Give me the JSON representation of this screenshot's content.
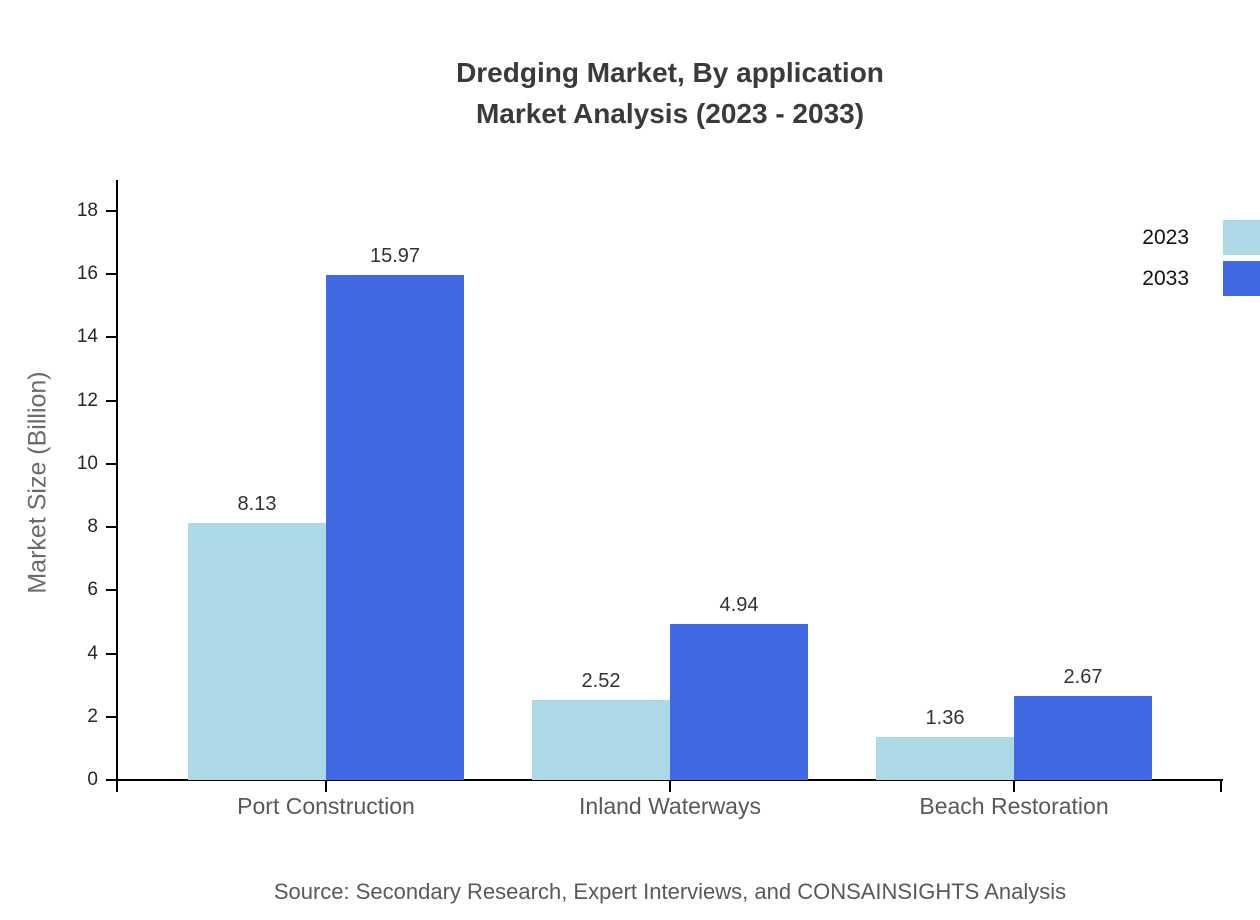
{
  "title": {
    "line1": "Dredging Market, By application",
    "line2": "Market Analysis (2023 - 2033)"
  },
  "y_axis_title": "Market Size (Billion)",
  "source": "Source: Secondary Research, Expert Interviews, and CONSAINSIGHTS Analysis",
  "legend": {
    "items": [
      {
        "label": "2023",
        "color": "#ADD8E6"
      },
      {
        "label": "2033",
        "color": "#4169E1"
      }
    ]
  },
  "colors": {
    "series_2023": "#ADD8E6",
    "series_2033": "#4169E1",
    "axis": "#000000",
    "title_text": "#3a3a3a",
    "tick_label_text": "#262626",
    "muted_text": "#595959",
    "value_label_text": "#333333"
  },
  "chart_data": {
    "type": "bar",
    "title": "Dredging Market, By application Market Analysis (2023 - 2033)",
    "categories": [
      "Port Construction",
      "Inland Waterways",
      "Beach Restoration"
    ],
    "series": [
      {
        "name": "2023",
        "color": "#ADD8E6",
        "values": [
          8.13,
          2.52,
          1.36
        ]
      },
      {
        "name": "2033",
        "color": "#4169E1",
        "values": [
          15.97,
          4.94,
          2.67
        ]
      }
    ],
    "value_labels": [
      "8.13",
      "15.97",
      "2.52",
      "4.94",
      "1.36",
      "2.67"
    ],
    "xlabel": "",
    "ylabel": "Market Size (Billion)",
    "ylim": [
      0,
      19
    ],
    "yticks": [
      0,
      2,
      4,
      6,
      8,
      10,
      12,
      14,
      16,
      18
    ],
    "grid": false,
    "legend_position": "top-right",
    "source": "Source: Secondary Research, Expert Interviews, and CONSAINSIGHTS Analysis"
  }
}
